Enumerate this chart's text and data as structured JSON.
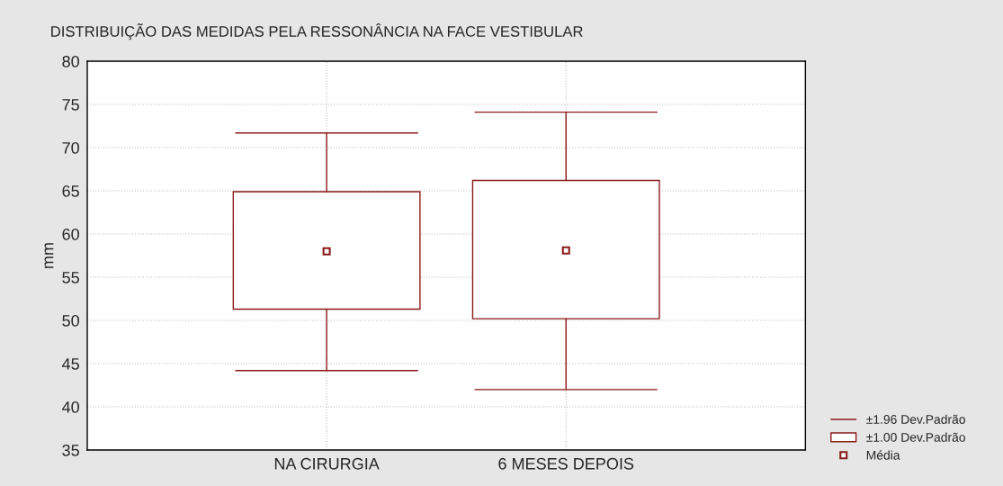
{
  "chart_data": {
    "type": "box",
    "title": "DISTRIBUIÇÃO DAS MEDIDAS PELA RESSONÂNCIA NA FACE VESTIBULAR",
    "ylabel": "mm",
    "categories": [
      "NA CIRURGIA",
      "6 MESES DEPOIS"
    ],
    "boxes": [
      {
        "low": 44.2,
        "q1": 51.3,
        "median": 58.0,
        "q3": 64.9,
        "high": 71.7
      },
      {
        "low": 42.0,
        "q1": 50.2,
        "median": 58.1,
        "q3": 66.2,
        "high": 74.1
      }
    ],
    "color": "#8b1a1a",
    "ylim": [
      35,
      80
    ],
    "yticks": [
      35,
      40,
      45,
      50,
      55,
      60,
      65,
      70,
      75,
      80
    ],
    "grid": true,
    "marker": "square",
    "annotations": [
      "±1.96 Dev.Padrão",
      "±1.00 Dev.Padrão",
      "Média"
    ]
  }
}
